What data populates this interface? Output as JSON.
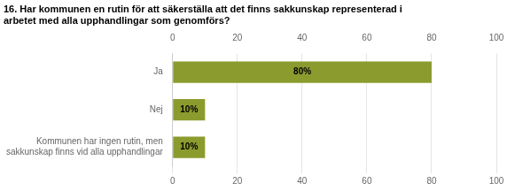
{
  "chart_data": {
    "type": "bar",
    "orientation": "horizontal",
    "title": "16. Har kommunen en rutin för att säkerställa att det finns sakkunskap representerad i\narbetet med alla upphandlingar som genomförs?",
    "categories": [
      "Ja",
      "Nej",
      "Kommunen har ingen rutin, men\nsakkunskap finns vid alla upphandlingar"
    ],
    "values": [
      80,
      10,
      10
    ],
    "value_labels": [
      "80%",
      "10%",
      "10%"
    ],
    "data_labels": true,
    "color": "#8B9B2E",
    "xlim": [
      0,
      100
    ],
    "xticks": [
      0,
      20,
      40,
      60,
      80,
      100
    ],
    "grid": true
  }
}
